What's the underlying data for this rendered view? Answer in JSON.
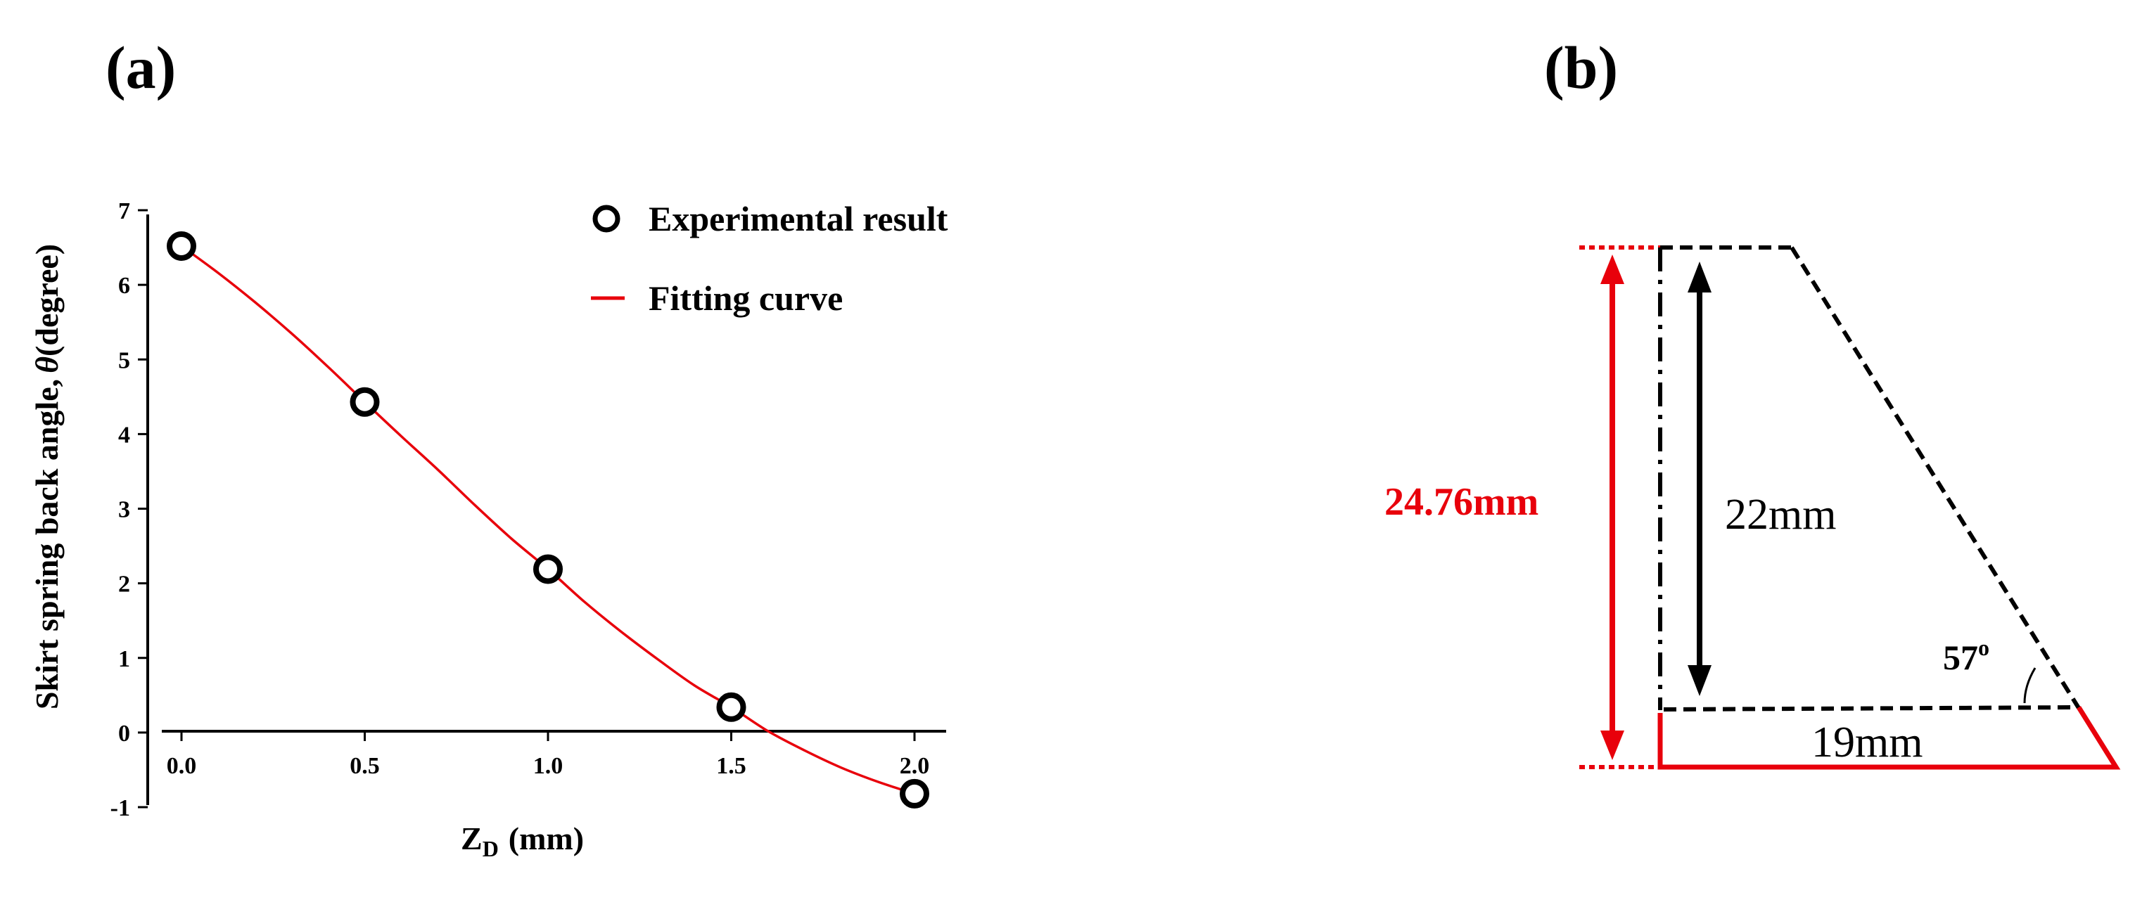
{
  "panels": {
    "a_label": "(a)",
    "b_label": "(b)"
  },
  "colors": {
    "fit": "#e8000b",
    "points": "#000000",
    "red_dim": "#e8000b"
  },
  "chart_data": {
    "type": "scatter",
    "xlabel_main": "Z",
    "xlabel_sub": "D",
    "xlabel_unit": "(mm)",
    "ylabel_text": "Skirt spring back angle,",
    "ylabel_symbol": "θ",
    "ylabel_unit": "(degree)",
    "xlim": [
      0.0,
      2.0
    ],
    "ylim": [
      -1,
      7
    ],
    "x_ticks": [
      "0.0",
      "0.5",
      "1.0",
      "1.5",
      "2.0"
    ],
    "y_ticks": [
      "-1",
      "0",
      "1",
      "2",
      "3",
      "4",
      "5",
      "6",
      "7"
    ],
    "grid": false,
    "legend_position": "top-right",
    "series": [
      {
        "name": "Experimental result",
        "kind": "points",
        "x": [
          0.0,
          0.5,
          1.0,
          1.5,
          2.0
        ],
        "y": [
          6.52,
          4.43,
          2.19,
          0.34,
          -0.82
        ]
      },
      {
        "name": "Fitting curve",
        "kind": "line",
        "x": [
          0.0,
          0.1,
          0.2,
          0.3,
          0.4,
          0.5,
          0.6,
          0.7,
          0.8,
          0.9,
          1.0,
          1.1,
          1.2,
          1.3,
          1.4,
          1.5,
          1.6,
          1.7,
          1.8,
          1.9,
          2.0
        ],
        "y": [
          6.52,
          6.16,
          5.77,
          5.35,
          4.9,
          4.43,
          3.97,
          3.52,
          3.05,
          2.6,
          2.19,
          1.75,
          1.35,
          0.98,
          0.63,
          0.34,
          0.02,
          -0.24,
          -0.47,
          -0.66,
          -0.82
        ]
      }
    ]
  },
  "diagram": {
    "height_total": "24.76mm",
    "height_inner": "22mm",
    "base_width": "19mm",
    "angle_value": "57",
    "angle_degree": "o"
  }
}
